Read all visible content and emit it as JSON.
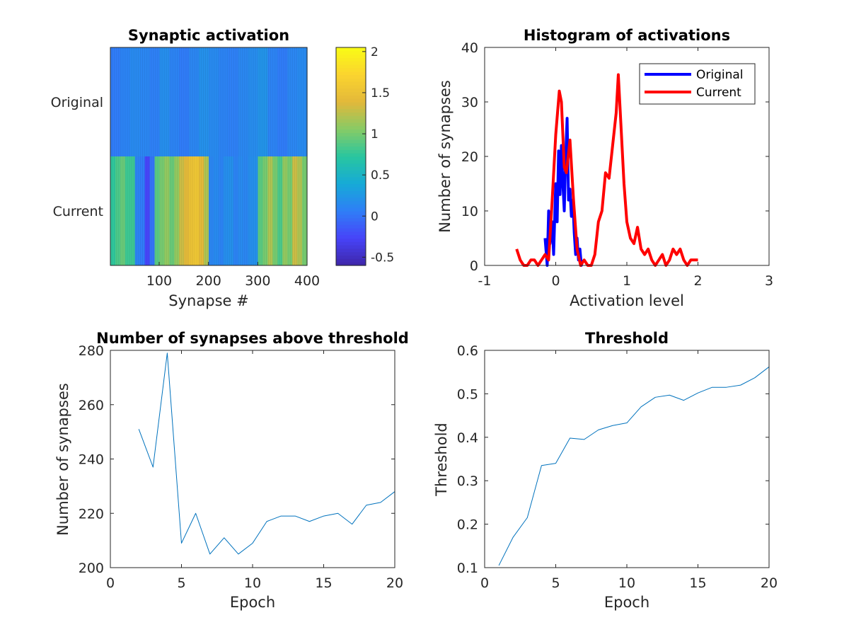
{
  "chart_data": [
    {
      "type": "heatmap",
      "title": "Synaptic activation",
      "xlabel": "Synapse #",
      "ylabel": "",
      "rows": [
        "Original",
        "Current"
      ],
      "x_range": [
        1,
        400
      ],
      "x_ticks": [
        100,
        200,
        300,
        400
      ],
      "colorbar": {
        "range": [
          -0.6,
          2.05
        ],
        "ticks": [
          "2",
          "1.5",
          "1",
          "0.5",
          "0",
          "-0.5"
        ],
        "tick_values": [
          2,
          1.5,
          1,
          0.5,
          0,
          -0.5
        ]
      },
      "colormap": [
        "#3e26a8",
        "#4743f8",
        "#2f7ef7",
        "#16aad7",
        "#28c6a0",
        "#86cb66",
        "#e2b83a",
        "#fbd42f",
        "#f9fb15"
      ],
      "row_values": {
        "Original": [
          0.05,
          0.1,
          0.15,
          0.12,
          0.08,
          0.18,
          0.1,
          0.05,
          0.12,
          0.2,
          0.15,
          0.1,
          0.08,
          0.13,
          0.17,
          0.22,
          0.1,
          0.05,
          0.12,
          0.15
        ],
        "Current": [
          0.75,
          0.85,
          0.95,
          0.8,
          0.8,
          0.1,
          0.05,
          -0.25,
          0.0,
          0.9,
          1.0,
          1.1,
          0.95,
          1.1,
          1.3,
          1.4,
          1.5,
          1.55,
          1.4,
          1.2,
          0.12,
          0.15,
          0.1,
          0.18,
          0.2,
          0.1,
          0.15,
          0.12,
          0.18,
          0.2,
          0.9,
          1.0,
          1.2,
          1.0,
          0.85,
          1.1,
          1.0,
          1.3,
          1.2,
          1.0
        ]
      }
    },
    {
      "type": "line",
      "title": "Histogram of activations",
      "xlabel": "Activation level",
      "ylabel": "Number of synapses",
      "xlim": [
        -1,
        3
      ],
      "ylim": [
        0,
        40
      ],
      "x_ticks": [
        "-1",
        "0",
        "1",
        "2",
        "3"
      ],
      "y_ticks": [
        "0",
        "10",
        "20",
        "30",
        "40"
      ],
      "legend_position": "top-right",
      "series": [
        {
          "name": "Original",
          "color": "#0000ff",
          "x": [
            -0.15,
            -0.12,
            -0.1,
            -0.08,
            -0.05,
            -0.03,
            0.0,
            0.02,
            0.04,
            0.06,
            0.08,
            0.1,
            0.12,
            0.14,
            0.16,
            0.18,
            0.2,
            0.22,
            0.24,
            0.26,
            0.28,
            0.3,
            0.32,
            0.34,
            0.36,
            0.38
          ],
          "y": [
            5,
            0,
            10,
            4,
            8,
            2,
            15,
            8,
            21,
            13,
            22,
            15,
            10,
            20,
            27,
            12,
            14,
            9,
            12,
            6,
            2,
            5,
            1,
            3,
            0,
            1
          ]
        },
        {
          "name": "Current",
          "color": "#ff0000",
          "x": [
            -0.55,
            -0.5,
            -0.45,
            -0.4,
            -0.35,
            -0.3,
            -0.25,
            -0.2,
            -0.15,
            -0.1,
            -0.05,
            0.0,
            0.05,
            0.08,
            0.12,
            0.15,
            0.2,
            0.25,
            0.3,
            0.35,
            0.4,
            0.45,
            0.5,
            0.55,
            0.6,
            0.65,
            0.7,
            0.75,
            0.8,
            0.85,
            0.88,
            0.92,
            0.96,
            1.0,
            1.05,
            1.1,
            1.15,
            1.2,
            1.25,
            1.3,
            1.35,
            1.4,
            1.45,
            1.5,
            1.55,
            1.6,
            1.65,
            1.7,
            1.75,
            1.8,
            1.85,
            1.9,
            1.95,
            2.0
          ],
          "y": [
            3,
            1,
            0,
            0,
            1,
            1,
            0,
            1,
            2,
            1,
            12,
            24,
            32,
            30,
            18,
            17,
            23,
            12,
            3,
            0,
            1,
            0,
            0,
            2,
            8,
            10,
            17,
            16,
            22,
            28,
            35,
            25,
            15,
            8,
            5,
            4,
            7,
            3,
            2,
            3,
            1,
            0,
            1,
            2,
            0,
            1,
            3,
            2,
            3,
            1,
            0,
            1,
            1,
            1
          ]
        }
      ]
    },
    {
      "type": "line",
      "title": "Number of synapses above threshold",
      "xlabel": "Epoch",
      "ylabel": "Number of synapses",
      "xlim": [
        0,
        20
      ],
      "ylim": [
        200,
        280
      ],
      "x_ticks": [
        "0",
        "5",
        "10",
        "15",
        "20"
      ],
      "y_ticks": [
        "200",
        "220",
        "240",
        "260",
        "280"
      ],
      "series": [
        {
          "name": "synapses above threshold",
          "color": "#0072bd",
          "x": [
            2,
            3,
            4,
            5,
            6,
            7,
            8,
            9,
            10,
            11,
            12,
            13,
            14,
            15,
            16,
            17,
            18,
            19,
            20
          ],
          "y": [
            251,
            237,
            279,
            209,
            220,
            205,
            211,
            205,
            209,
            217,
            219,
            219,
            217,
            219,
            220,
            216,
            223,
            224,
            228
          ]
        }
      ]
    },
    {
      "type": "line",
      "title": "Threshold",
      "xlabel": "Epoch",
      "ylabel": "Threshold",
      "xlim": [
        0,
        20
      ],
      "ylim": [
        0.1,
        0.6
      ],
      "x_ticks": [
        "0",
        "5",
        "10",
        "15",
        "20"
      ],
      "y_ticks": [
        "0.1",
        "0.2",
        "0.3",
        "0.4",
        "0.5",
        "0.6"
      ],
      "series": [
        {
          "name": "threshold",
          "color": "#0072bd",
          "x": [
            1,
            2,
            3,
            4,
            5,
            6,
            7,
            8,
            9,
            10,
            11,
            12,
            13,
            14,
            15,
            16,
            17,
            18,
            19,
            20
          ],
          "y": [
            0.105,
            0.17,
            0.215,
            0.335,
            0.34,
            0.398,
            0.395,
            0.417,
            0.427,
            0.433,
            0.47,
            0.492,
            0.497,
            0.485,
            0.502,
            0.515,
            0.515,
            0.52,
            0.537,
            0.562
          ]
        }
      ]
    }
  ]
}
